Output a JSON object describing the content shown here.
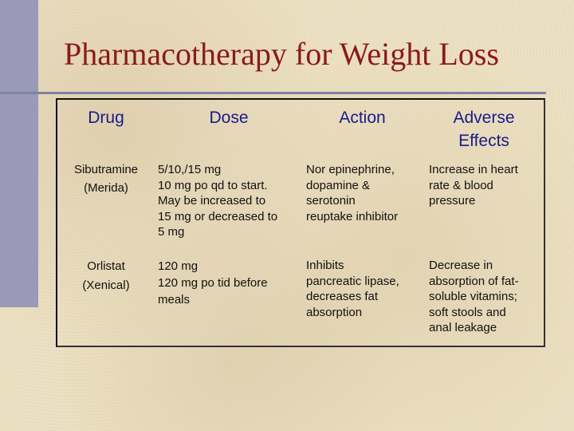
{
  "slide": {
    "title": "Pharmacotherapy for Weight Loss",
    "colors": {
      "title": "#8b1a1a",
      "header_text": "#1a1a8a",
      "background": "#ece0c2",
      "accent_bar": "#9a9ab8"
    }
  },
  "table": {
    "headers": {
      "drug": "Drug",
      "dose": "Dose",
      "action": "Action",
      "adverse_line1": "Adverse",
      "adverse_line2": "Effects"
    },
    "rows": [
      {
        "drug": [
          "Sibutramine",
          "(Merida)"
        ],
        "dose": [
          "5/10,/15 mg",
          "10 mg po qd to start.",
          "May be increased to",
          "15 mg or decreased to",
          "5 mg"
        ],
        "action": [
          "Nor epinephrine,",
          "dopamine &",
          "serotonin",
          "reuptake inhibitor"
        ],
        "adverse": [
          "Increase in heart",
          "rate & blood",
          "pressure"
        ]
      },
      {
        "drug": [
          "Orlistat",
          "(Xenical)"
        ],
        "dose": [
          "120 mg",
          "120 mg po tid before",
          "meals"
        ],
        "action": [
          "Inhibits",
          "pancreatic lipase,",
          "decreases fat",
          "absorption"
        ],
        "adverse": [
          "Decrease in",
          "absorption of fat-",
          "soluble vitamins;",
          "soft stools and",
          "anal leakage"
        ]
      }
    ]
  }
}
